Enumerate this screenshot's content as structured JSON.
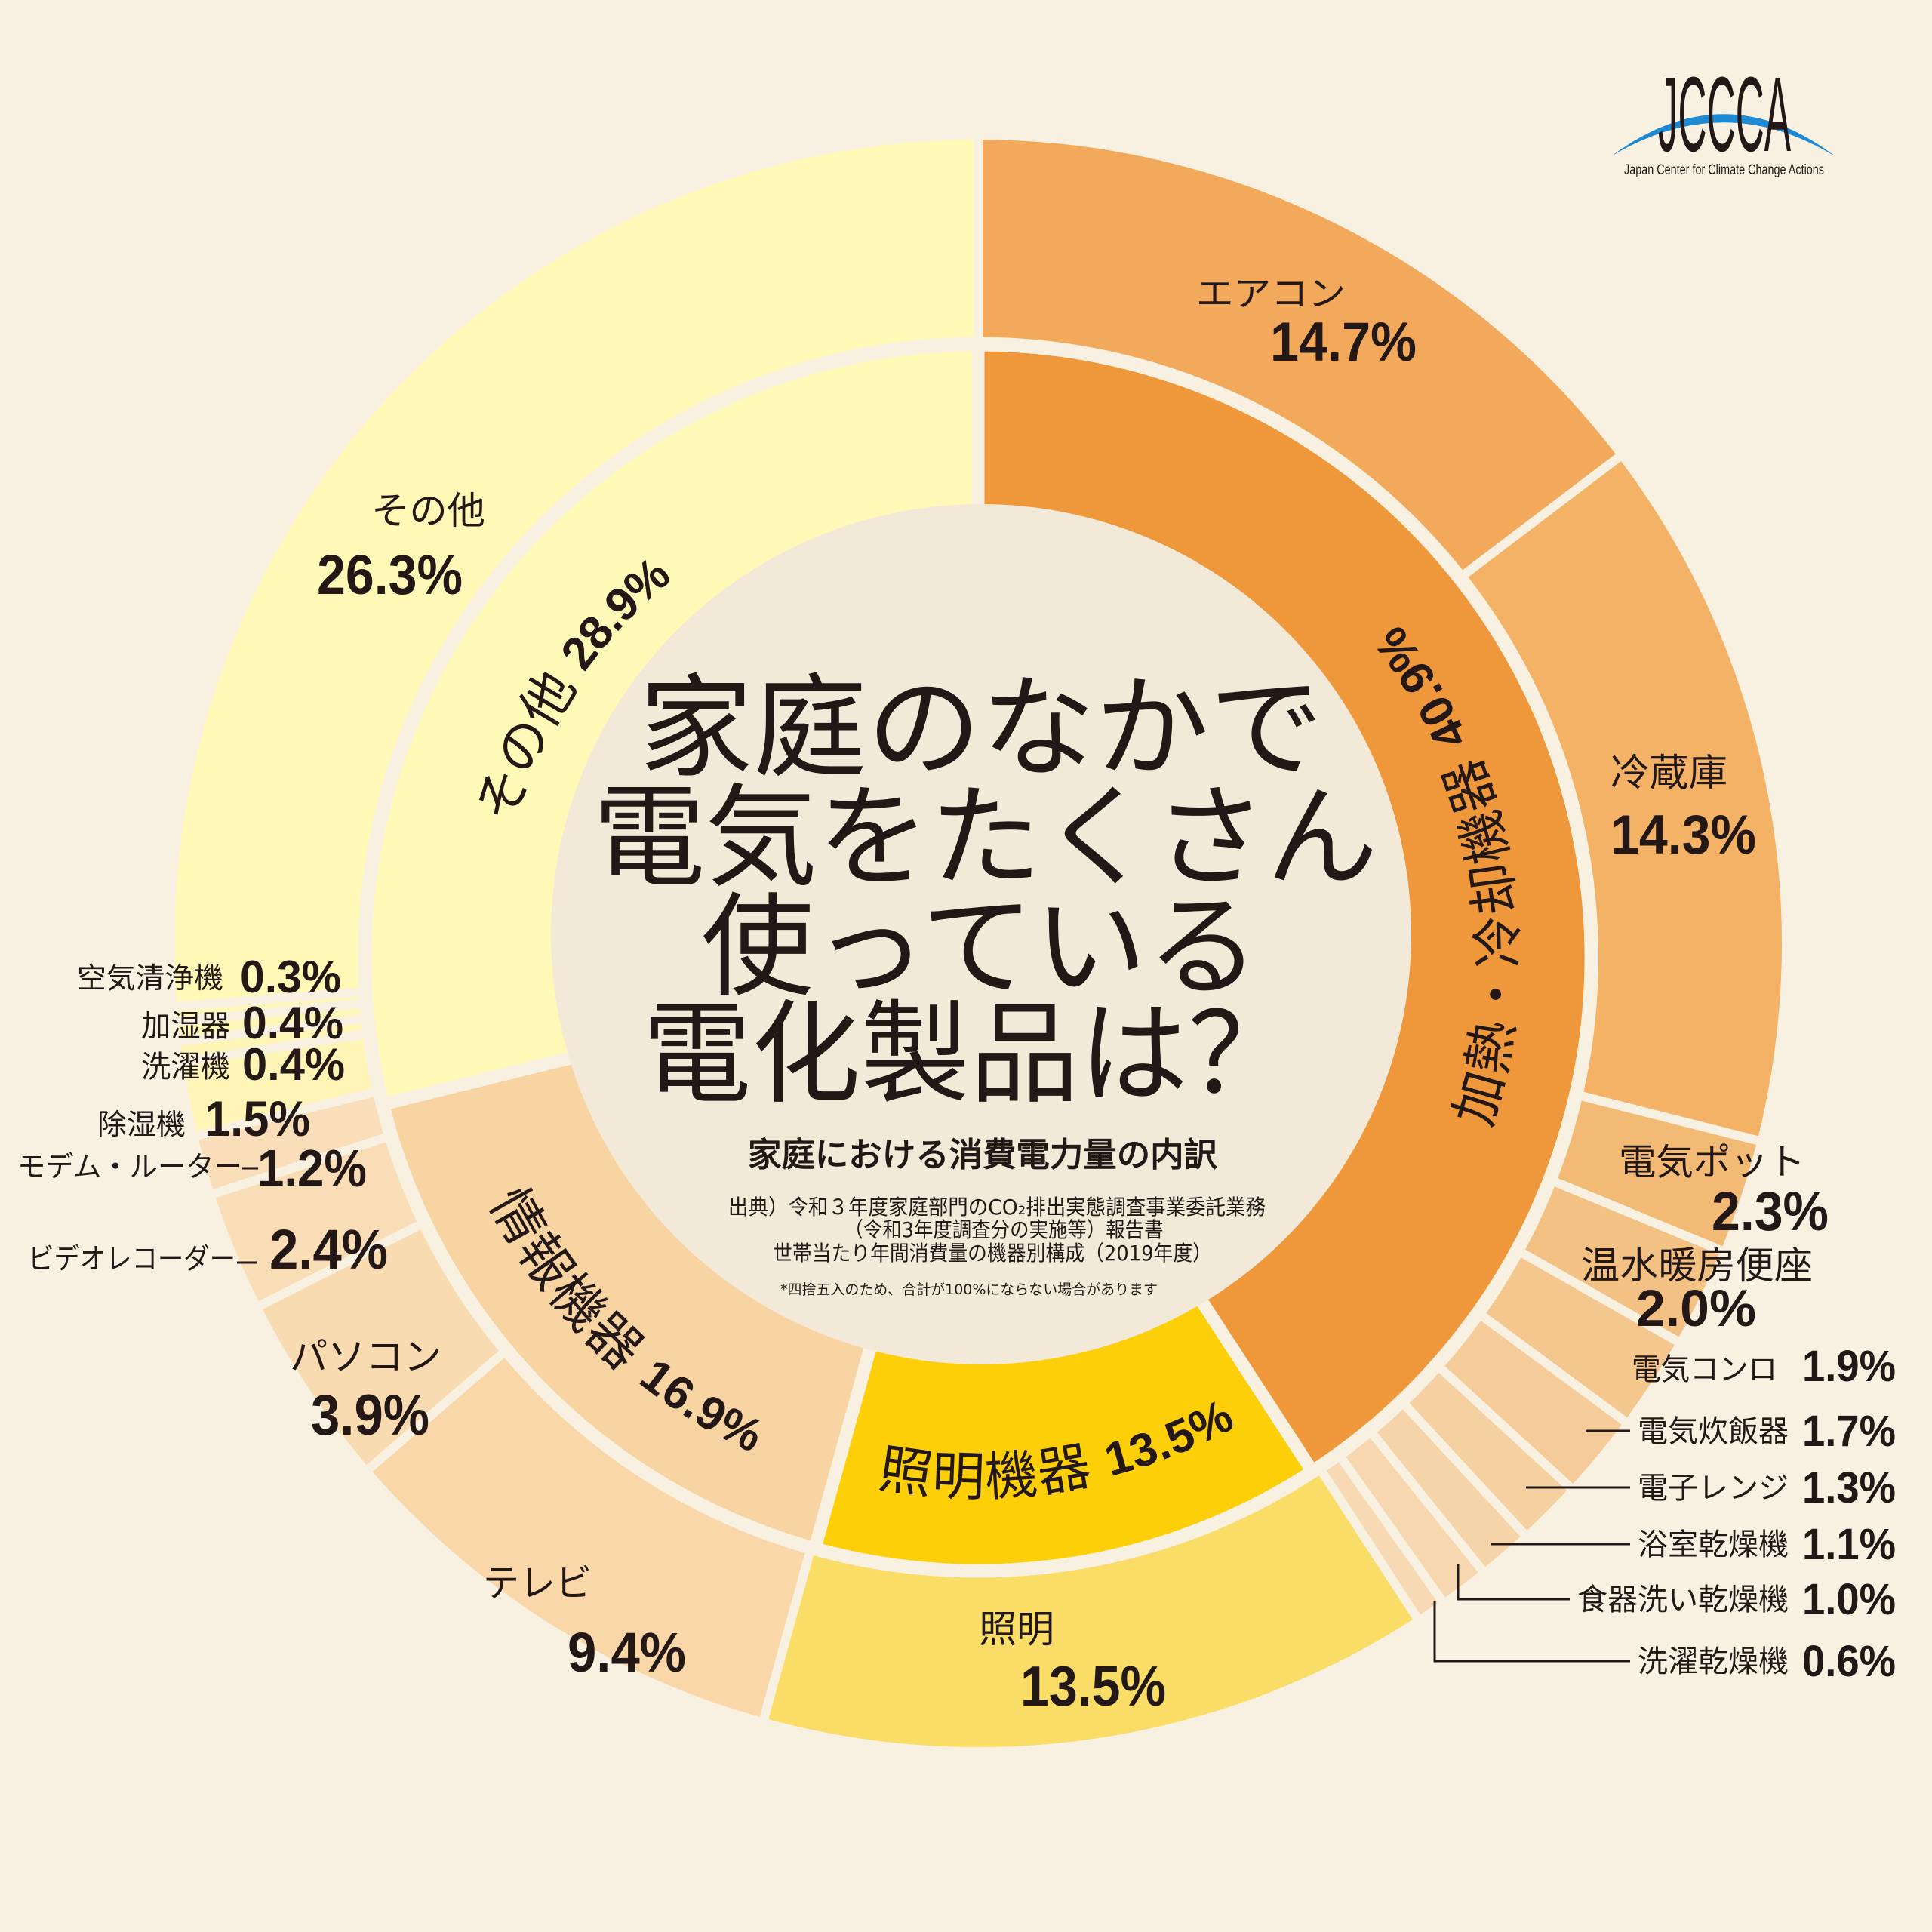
{
  "page": {
    "background": "#F8F0E0",
    "center_color": "#F2E9D8",
    "text_color": "#231815"
  },
  "logo": {
    "abbr": "JCCCA",
    "tagline": "Japan Center for Climate Change Actions",
    "arc_color": "#1E8AD3"
  },
  "title": {
    "line1": "家庭のなかで",
    "line2": "電気をたくさん",
    "line3": "使っている",
    "line4": "電化製品は？"
  },
  "subtitle": "家庭における消費電力量の内訳",
  "source": {
    "line1": "出典）令和３年度家庭部門のCO₂排出実態調査事業委託業務",
    "line2": "（令和3年度調査分の実施等）報告書",
    "line3": "世帯当たり年間消費量の機器別構成（2019年度）",
    "note": "*四捨五入のため、合計が100%にならない場合があります"
  },
  "chart_data": {
    "type": "pie",
    "variant": "two-level donut (sunburst)",
    "title": "家庭のなかで電気をたくさん使っている電化製品は？",
    "subtitle": "家庭における消費電力量の内訳",
    "unit": "%",
    "legend_position": "none",
    "grid": false,
    "inner_ring": [
      {
        "name": "加熱・冷却機器",
        "value": 40.9,
        "pct": "40.9%",
        "color": "#EF983B"
      },
      {
        "name": "照明機器",
        "value": 13.5,
        "pct": "13.5%",
        "color": "#FCCF08"
      },
      {
        "name": "情報機器",
        "value": 16.9,
        "pct": "16.9%",
        "color": "#F8D4A3"
      },
      {
        "name": "その他",
        "value": 28.9,
        "pct": "28.9%",
        "color": "#FFF9B8"
      }
    ],
    "outer_ring": [
      {
        "name": "エアコン",
        "value": 14.7,
        "pct": "14.7%",
        "parent": "加熱・冷却機器",
        "color": "#F2A95B"
      },
      {
        "name": "冷蔵庫",
        "value": 14.3,
        "pct": "14.3%",
        "parent": "加熱・冷却機器",
        "color": "#F3B266"
      },
      {
        "name": "電気ポット",
        "value": 2.3,
        "pct": "2.3%",
        "parent": "加熱・冷却機器",
        "color": "#F3BA76"
      },
      {
        "name": "温水暖房便座",
        "value": 2.0,
        "pct": "2.0%",
        "parent": "加熱・冷却機器",
        "color": "#F4C184"
      },
      {
        "name": "電気コンロ",
        "value": 1.9,
        "pct": "1.9%",
        "parent": "加熱・冷却機器",
        "color": "#F4C78F"
      },
      {
        "name": "電気炊飯器",
        "value": 1.7,
        "pct": "1.7%",
        "parent": "加熱・冷却機器",
        "color": "#F5CC99"
      },
      {
        "name": "電子レンジ",
        "value": 1.3,
        "pct": "1.3%",
        "parent": "加熱・冷却機器",
        "color": "#F5D0A1"
      },
      {
        "name": "浴室乾燥機",
        "value": 1.1,
        "pct": "1.1%",
        "parent": "加熱・冷却機器",
        "color": "#F6D4A9"
      },
      {
        "name": "食器洗い乾燥機",
        "value": 1.0,
        "pct": "1.0%",
        "parent": "加熱・冷却機器",
        "color": "#F6D7AF"
      },
      {
        "name": "洗濯乾燥機",
        "value": 0.6,
        "pct": "0.6%",
        "parent": "加熱・冷却機器",
        "color": "#F7DAB4"
      },
      {
        "name": "照明",
        "value": 13.5,
        "pct": "13.5%",
        "parent": "照明機器",
        "color": "#F9DD67"
      },
      {
        "name": "テレビ",
        "value": 9.4,
        "pct": "9.4%",
        "parent": "情報機器",
        "color": "#F9D7A9"
      },
      {
        "name": "パソコン",
        "value": 3.9,
        "pct": "3.9%",
        "parent": "情報機器",
        "color": "#F9DBB1"
      },
      {
        "name": "ビデオレコーダー",
        "value": 2.4,
        "pct": "2.4%",
        "parent": "情報機器",
        "color": "#F9DDB6"
      },
      {
        "name": "モデム・ルーター",
        "value": 1.2,
        "pct": "1.2%",
        "parent": "情報機器",
        "color": "#F9DEB9"
      },
      {
        "name": "除湿機",
        "value": 1.5,
        "pct": "1.5%",
        "parent": "その他",
        "color": "#FEF4B5"
      },
      {
        "name": "洗濯機",
        "value": 0.4,
        "pct": "0.4%",
        "parent": "その他",
        "color": "#FEF5B7"
      },
      {
        "name": "加湿器",
        "value": 0.4,
        "pct": "0.4%",
        "parent": "その他",
        "color": "#FEF5B9"
      },
      {
        "name": "空気清浄機",
        "value": 0.3,
        "pct": "0.3%",
        "parent": "その他",
        "color": "#FEF6BB"
      },
      {
        "name": "その他",
        "value": 26.3,
        "pct": "26.3%",
        "parent": "その他",
        "color": "#FFF8B6"
      }
    ]
  }
}
